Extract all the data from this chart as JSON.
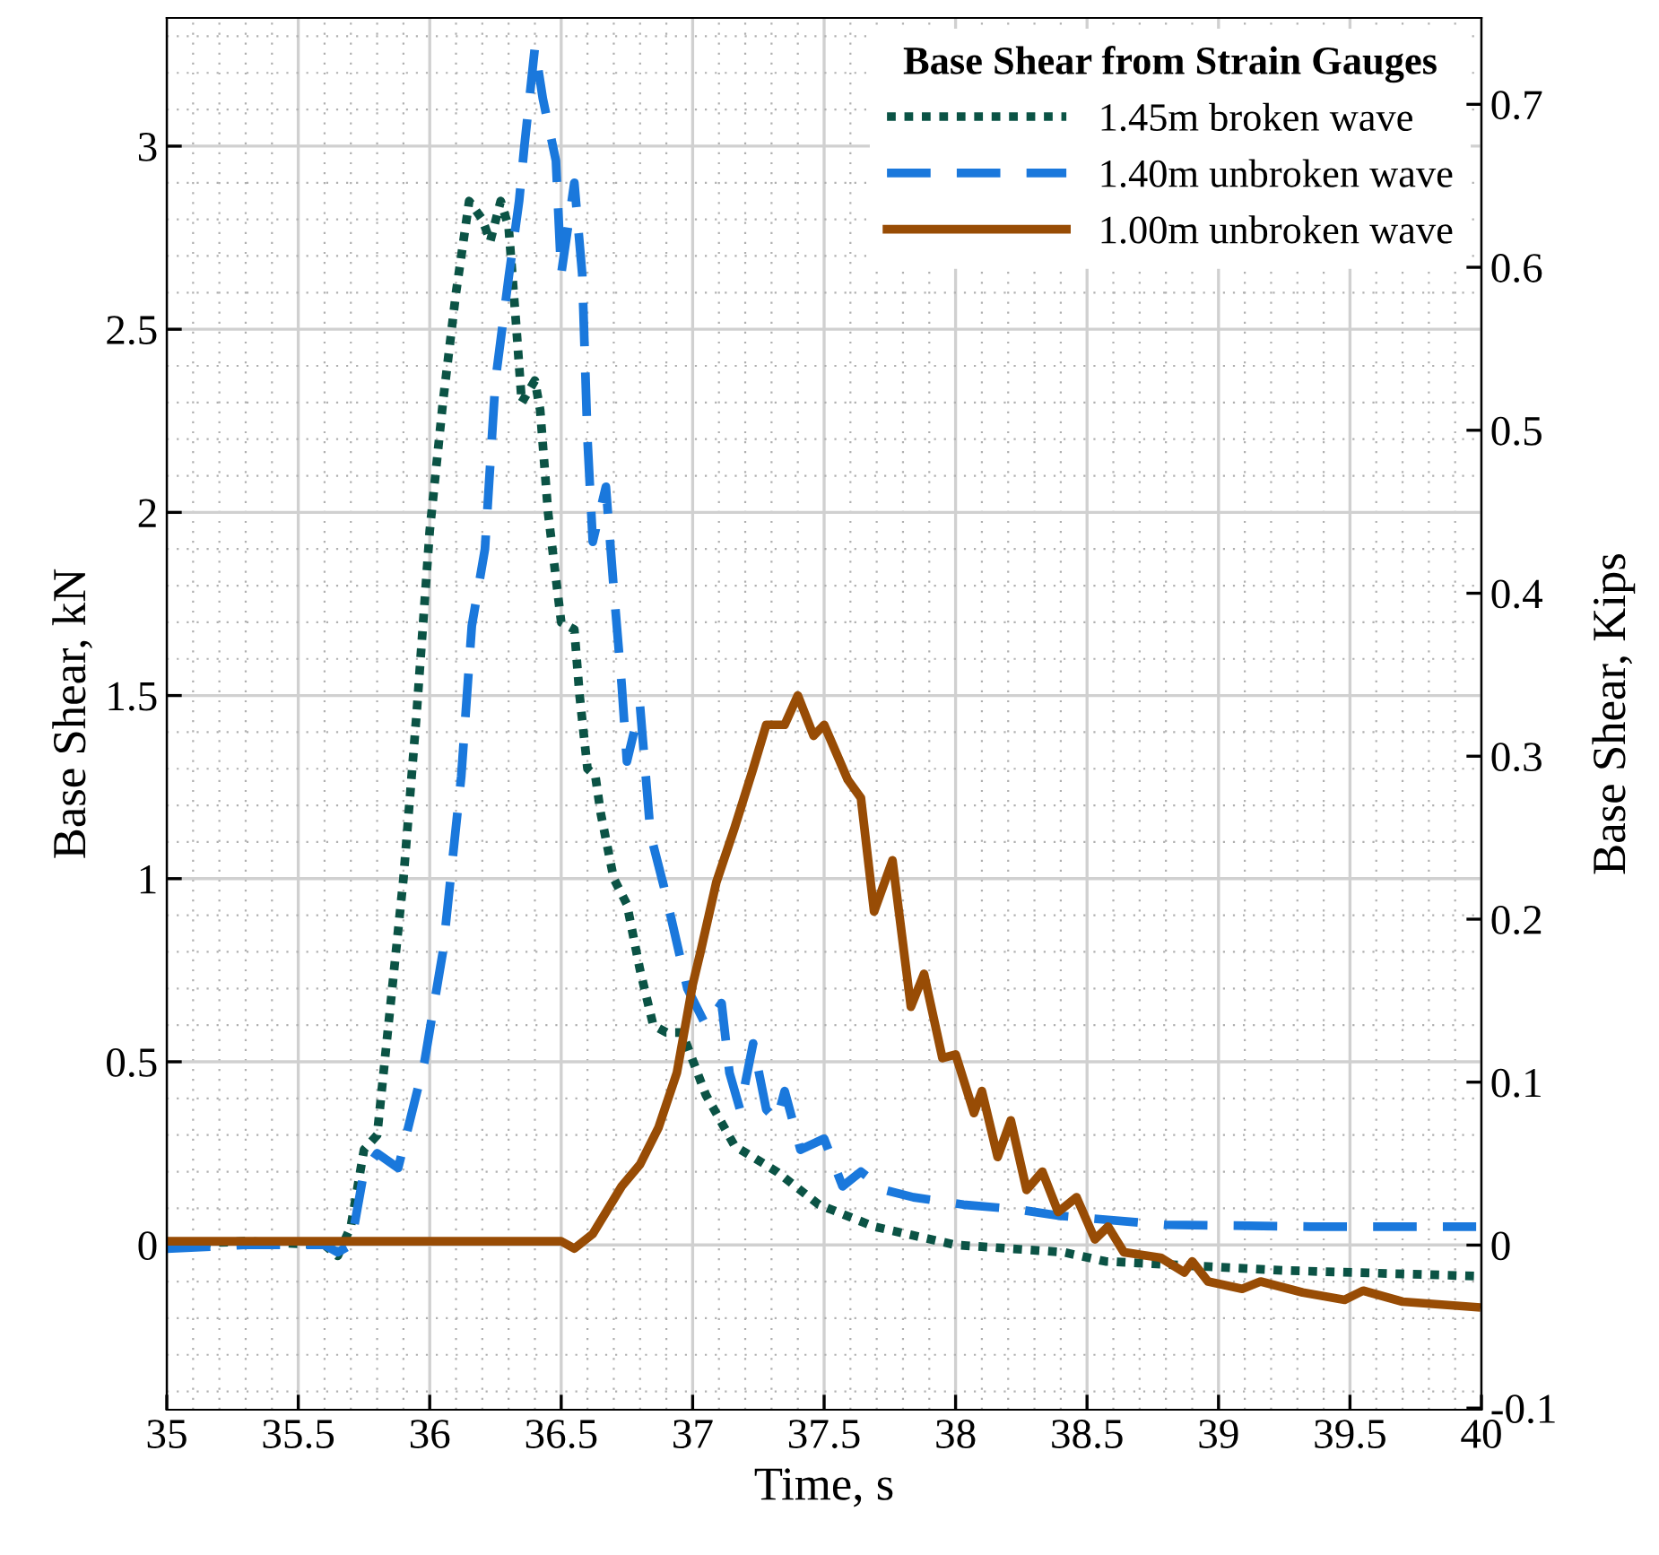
{
  "chart_data": {
    "type": "line",
    "xlabel": "Time, s",
    "ylabel": "Base Shear, kN",
    "y2label": "Base Shear, Kips",
    "legend_title": "Base Shear from Strain Gauges",
    "xlim": [
      35,
      40
    ],
    "xticks": [
      35,
      35.5,
      36,
      36.5,
      37,
      37.5,
      38,
      38.5,
      39,
      39.5,
      40
    ],
    "ylim": [
      -0.45,
      3.35
    ],
    "yticks": [
      0,
      0.5,
      1,
      1.5,
      2,
      2.5,
      3
    ],
    "y2lim": [
      -0.101,
      0.753
    ],
    "y2ticks": [
      -0.1,
      0,
      0.1,
      0.2,
      0.3,
      0.4,
      0.5,
      0.6,
      0.7
    ],
    "grid": true,
    "legend": "top right",
    "series": [
      {
        "name": "1.45m broken wave",
        "color": "#0b5345",
        "line_style": "dotted",
        "x": [
          35.0,
          35.3,
          35.6,
          35.65,
          35.7,
          35.75,
          35.8,
          35.85,
          35.9,
          35.95,
          36.0,
          36.05,
          36.1,
          36.15,
          36.2,
          36.23,
          36.27,
          36.3,
          36.33,
          36.35,
          36.4,
          36.42,
          36.45,
          36.5,
          36.55,
          36.57,
          36.6,
          36.63,
          36.65,
          36.7,
          36.75,
          36.8,
          36.85,
          36.9,
          36.96,
          37.05,
          37.16,
          37.32,
          37.48,
          37.69,
          38.0,
          38.41,
          38.57,
          39.26,
          39.98
        ],
        "values": [
          0,
          0.01,
          0,
          -0.03,
          0.05,
          0.26,
          0.3,
          0.65,
          1.0,
          1.45,
          1.95,
          2.3,
          2.6,
          2.85,
          2.8,
          2.74,
          2.85,
          2.78,
          2.5,
          2.3,
          2.36,
          2.28,
          2.0,
          1.7,
          1.68,
          1.5,
          1.3,
          1.28,
          1.18,
          1.0,
          0.93,
          0.75,
          0.6,
          0.58,
          0.58,
          0.41,
          0.27,
          0.2,
          0.11,
          0.05,
          0,
          -0.02,
          -0.045,
          -0.07,
          -0.085
        ]
      },
      {
        "name": "1.40m unbroken wave",
        "color": "#1a78dc",
        "line_style": "dashed",
        "x": [
          35.0,
          35.3,
          35.6,
          35.65,
          35.7,
          35.75,
          35.8,
          35.88,
          35.98,
          36.05,
          36.12,
          36.16,
          36.21,
          36.25,
          36.3,
          36.34,
          36.36,
          36.4,
          36.43,
          36.48,
          36.5,
          36.55,
          36.58,
          36.6,
          36.62,
          36.67,
          36.7,
          36.73,
          36.75,
          36.8,
          36.84,
          36.89,
          36.98,
          37.05,
          37.11,
          37.14,
          37.18,
          37.23,
          37.28,
          37.32,
          37.35,
          37.41,
          37.5,
          37.57,
          37.64,
          37.73,
          37.84,
          38.03,
          38.19,
          38.21,
          38.39,
          38.8,
          39.35,
          39.98
        ],
        "values": [
          -0.01,
          0,
          0,
          -0.02,
          0,
          0.2,
          0.25,
          0.21,
          0.5,
          0.8,
          1.28,
          1.69,
          1.9,
          2.36,
          2.64,
          2.85,
          3.0,
          3.27,
          3.13,
          2.96,
          2.65,
          2.9,
          2.65,
          2.2,
          1.92,
          2.07,
          1.79,
          1.53,
          1.32,
          1.47,
          1.12,
          0.98,
          0.7,
          0.6,
          0.66,
          0.47,
          0.37,
          0.55,
          0.37,
          0.34,
          0.42,
          0.26,
          0.29,
          0.16,
          0.2,
          0.15,
          0.13,
          0.11,
          0.1,
          0.1,
          0.08,
          0.055,
          0.05,
          0.05
        ]
      },
      {
        "name": "1.00m unbroken wave",
        "color": "#984c05",
        "line_style": "solid",
        "x": [
          35.0,
          35.5,
          36.0,
          36.5,
          36.55,
          36.62,
          36.73,
          36.8,
          36.87,
          36.94,
          37.0,
          37.03,
          37.09,
          37.16,
          37.23,
          37.28,
          37.35,
          37.4,
          37.46,
          37.5,
          37.59,
          37.64,
          37.69,
          37.76,
          37.83,
          37.88,
          37.95,
          38.0,
          38.07,
          38.1,
          38.16,
          38.21,
          38.27,
          38.33,
          38.39,
          38.46,
          38.53,
          38.58,
          38.64,
          38.78,
          38.87,
          38.9,
          38.96,
          39.09,
          39.16,
          39.32,
          39.48,
          39.55,
          39.7,
          39.98
        ],
        "values": [
          0.01,
          0.01,
          0.01,
          0.01,
          -0.01,
          0.03,
          0.16,
          0.22,
          0.32,
          0.47,
          0.71,
          0.8,
          0.99,
          1.14,
          1.3,
          1.42,
          1.42,
          1.5,
          1.39,
          1.42,
          1.27,
          1.22,
          0.91,
          1.05,
          0.65,
          0.74,
          0.51,
          0.52,
          0.36,
          0.42,
          0.24,
          0.34,
          0.15,
          0.2,
          0.09,
          0.13,
          0.015,
          0.05,
          -0.02,
          -0.035,
          -0.075,
          -0.045,
          -0.1,
          -0.12,
          -0.1,
          -0.13,
          -0.15,
          -0.125,
          -0.155,
          -0.17
        ]
      }
    ]
  }
}
